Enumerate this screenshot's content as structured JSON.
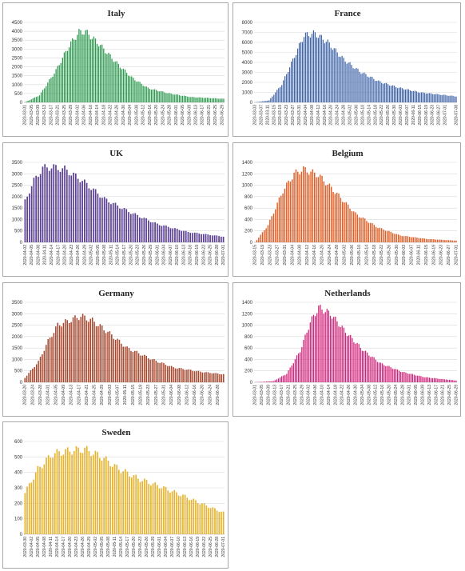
{
  "chart_data": [
    {
      "type": "bar",
      "title": "Italy",
      "color": "#2e9a4f",
      "ylim": [
        0,
        4500
      ],
      "yticks": [
        0,
        500,
        1000,
        1500,
        2000,
        2500,
        3000,
        3500,
        4000,
        4500
      ],
      "grid": true,
      "start_date": "2020-03-01",
      "end_date": "2020-06-30",
      "xtick_labels": [
        "2020-03-01",
        "2020-03-05",
        "2020-03-09",
        "2020-03-13",
        "2020-03-17",
        "2020-03-21",
        "2020-03-25",
        "2020-03-29",
        "2020-04-02",
        "2020-04-06",
        "2020-04-10",
        "2020-04-14",
        "2020-04-18",
        "2020-04-22",
        "2020-04-26",
        "2020-04-30",
        "2020-05-04",
        "2020-05-08",
        "2020-05-12",
        "2020-05-16",
        "2020-05-20",
        "2020-05-24",
        "2020-05-28",
        "2020-06-01",
        "2020-06-05",
        "2020-06-09",
        "2020-06-13",
        "2020-06-17",
        "2020-06-21",
        "2020-06-25",
        "2020-06-29"
      ],
      "shape": {
        "x": [
          "2020-03-01",
          "2020-03-10",
          "2020-03-20",
          "2020-03-28",
          "2020-04-03",
          "2020-04-07",
          "2020-04-15",
          "2020-04-25",
          "2020-05-05",
          "2020-05-15",
          "2020-05-28",
          "2020-06-10",
          "2020-06-30"
        ],
        "y": [
          0,
          400,
          1800,
          3200,
          3950,
          3980,
          3300,
          2300,
          1400,
          800,
          500,
          300,
          200
        ]
      }
    },
    {
      "type": "bar",
      "title": "France",
      "color": "#3f64aa",
      "ylim": [
        0,
        8000
      ],
      "yticks": [
        0,
        1000,
        2000,
        3000,
        4000,
        5000,
        6000,
        7000,
        8000
      ],
      "grid": true,
      "start_date": "2020-03-03",
      "end_date": "2020-07-08",
      "xtick_labels": [
        "2020-03-03",
        "2020-03-07",
        "2020-03-11",
        "2020-03-15",
        "2020-03-19",
        "2020-03-23",
        "2020-03-27",
        "2020-03-31",
        "2020-04-04",
        "2020-04-08",
        "2020-04-12",
        "2020-04-16",
        "2020-04-20",
        "2020-04-24",
        "2020-04-28",
        "2020-05-02",
        "2020-05-06",
        "2020-05-10",
        "2020-05-14",
        "2020-05-18",
        "2020-05-22",
        "2020-05-26",
        "2020-05-30",
        "2020-06-03",
        "2020-06-07",
        "2020-06-11",
        "2020-06-15",
        "2020-06-19",
        "2020-06-23",
        "2020-06-27",
        "2020-07-01",
        "2020-07-08"
      ],
      "shape": {
        "x": [
          "2020-03-03",
          "2020-03-12",
          "2020-03-20",
          "2020-03-28",
          "2020-04-03",
          "2020-04-10",
          "2020-04-18",
          "2020-04-28",
          "2020-05-08",
          "2020-05-20",
          "2020-06-01",
          "2020-06-15",
          "2020-07-08"
        ],
        "y": [
          0,
          200,
          1800,
          4600,
          6700,
          6900,
          6000,
          4300,
          3100,
          2100,
          1500,
          1000,
          600
        ]
      }
    },
    {
      "type": "bar",
      "title": "UK",
      "color": "#5b3f93",
      "ylim": [
        0,
        3500
      ],
      "yticks": [
        0,
        500,
        1000,
        1500,
        2000,
        2500,
        3000,
        3500
      ],
      "grid": true,
      "start_date": "2020-04-02",
      "end_date": "2020-07-01",
      "xtick_labels": [
        "2020-04-02",
        "2020-04-05",
        "2020-04-08",
        "2020-04-11",
        "2020-04-14",
        "2020-04-17",
        "2020-04-20",
        "2020-04-23",
        "2020-04-26",
        "2020-04-29",
        "2020-05-02",
        "2020-05-05",
        "2020-05-08",
        "2020-05-11",
        "2020-05-14",
        "2020-05-17",
        "2020-05-20",
        "2020-05-23",
        "2020-05-26",
        "2020-05-29",
        "2020-06-01",
        "2020-06-04",
        "2020-06-07",
        "2020-06-10",
        "2020-06-13",
        "2020-06-16",
        "2020-06-19",
        "2020-06-22",
        "2020-06-25",
        "2020-06-28",
        "2020-07-01"
      ],
      "shape": {
        "x": [
          "2020-04-02",
          "2020-04-06",
          "2020-04-10",
          "2020-04-14",
          "2020-04-20",
          "2020-04-28",
          "2020-05-08",
          "2020-05-20",
          "2020-06-01",
          "2020-06-15",
          "2020-07-01"
        ],
        "y": [
          1800,
          2700,
          3250,
          3300,
          3200,
          2700,
          1900,
          1300,
          800,
          450,
          250
        ]
      }
    },
    {
      "type": "bar",
      "title": "Belgium",
      "color": "#e05d25",
      "ylim": [
        0,
        1400
      ],
      "yticks": [
        0,
        200,
        400,
        600,
        800,
        1000,
        1200,
        1400
      ],
      "grid": true,
      "start_date": "2020-03-15",
      "end_date": "2020-07-01",
      "xtick_labels": [
        "2020-03-15",
        "2020-03-19",
        "2020-03-23",
        "2020-03-27",
        "2020-03-31",
        "2020-04-04",
        "2020-04-08",
        "2020-04-12",
        "2020-04-16",
        "2020-04-20",
        "2020-04-24",
        "2020-04-28",
        "2020-05-02",
        "2020-05-06",
        "2020-05-10",
        "2020-05-14",
        "2020-05-18",
        "2020-05-22",
        "2020-05-26",
        "2020-05-30",
        "2020-06-03",
        "2020-06-07",
        "2020-06-11",
        "2020-06-15",
        "2020-06-19",
        "2020-06-23",
        "2020-06-27",
        "2020-07-01"
      ],
      "shape": {
        "x": [
          "2020-03-15",
          "2020-03-22",
          "2020-03-30",
          "2020-04-05",
          "2020-04-10",
          "2020-04-18",
          "2020-04-28",
          "2020-05-08",
          "2020-05-20",
          "2020-06-01",
          "2020-06-15",
          "2020-07-01"
        ],
        "y": [
          0,
          300,
          900,
          1200,
          1280,
          1180,
          850,
          500,
          260,
          120,
          60,
          30
        ]
      }
    },
    {
      "type": "bar",
      "title": "Germany",
      "color": "#a6452b",
      "ylim": [
        0,
        3500
      ],
      "yticks": [
        0,
        500,
        1000,
        1500,
        2000,
        2500,
        3000,
        3500
      ],
      "grid": true,
      "start_date": "2020-03-20",
      "end_date": "2020-07-01",
      "xtick_labels": [
        "2020-03-20",
        "2020-03-24",
        "2020-03-28",
        "2020-04-01",
        "2020-04-05",
        "2020-04-09",
        "2020-04-13",
        "2020-04-17",
        "2020-04-21",
        "2020-04-25",
        "2020-04-29",
        "2020-05-03",
        "2020-05-07",
        "2020-05-11",
        "2020-05-15",
        "2020-05-19",
        "2020-05-23",
        "2020-05-27",
        "2020-05-31",
        "2020-06-04",
        "2020-06-08",
        "2020-06-12",
        "2020-06-16",
        "2020-06-20",
        "2020-06-24",
        "2020-06-28"
      ],
      "shape": {
        "x": [
          "2020-03-20",
          "2020-03-27",
          "2020-04-01",
          "2020-04-06",
          "2020-04-12",
          "2020-04-18",
          "2020-04-24",
          "2020-05-02",
          "2020-05-12",
          "2020-05-25",
          "2020-06-05",
          "2020-06-20",
          "2020-07-01"
        ],
        "y": [
          200,
          900,
          1800,
          2500,
          2700,
          2900,
          2700,
          2200,
          1500,
          1000,
          650,
          450,
          350
        ]
      }
    },
    {
      "type": "bar",
      "title": "Netherlands",
      "color": "#d2237b",
      "ylim": [
        0,
        1400
      ],
      "yticks": [
        0,
        200,
        400,
        600,
        800,
        1000,
        1200,
        1400
      ],
      "grid": true,
      "start_date": "2020-03-01",
      "end_date": "2020-06-29",
      "xtick_labels": [
        "2020-03-01",
        "2020-03-05",
        "2020-03-09",
        "2020-03-13",
        "2020-03-17",
        "2020-03-21",
        "2020-03-25",
        "2020-03-29",
        "2020-04-02",
        "2020-04-06",
        "2020-04-10",
        "2020-04-14",
        "2020-04-18",
        "2020-04-22",
        "2020-04-26",
        "2020-04-30",
        "2020-05-04",
        "2020-05-08",
        "2020-05-12",
        "2020-05-16",
        "2020-05-20",
        "2020-05-24",
        "2020-05-28",
        "2020-06-01",
        "2020-06-05",
        "2020-06-09",
        "2020-06-13",
        "2020-06-17",
        "2020-06-21",
        "2020-06-25",
        "2020-06-29"
      ],
      "shape": {
        "x": [
          "2020-03-01",
          "2020-03-12",
          "2020-03-20",
          "2020-03-28",
          "2020-04-03",
          "2020-04-08",
          "2020-04-15",
          "2020-04-25",
          "2020-05-05",
          "2020-05-15",
          "2020-05-28",
          "2020-06-10",
          "2020-06-29"
        ],
        "y": [
          0,
          20,
          150,
          550,
          1050,
          1310,
          1200,
          850,
          550,
          330,
          180,
          90,
          30
        ]
      }
    },
    {
      "type": "bar",
      "title": "Sweden",
      "color": "#e6b32e",
      "ylim": [
        0,
        600
      ],
      "yticks": [
        0,
        100,
        200,
        300,
        400,
        500,
        600
      ],
      "grid": true,
      "start_date": "2020-03-30",
      "end_date": "2020-07-01",
      "xtick_labels": [
        "2020-03-30",
        "2020-04-02",
        "2020-04-05",
        "2020-04-08",
        "2020-04-11",
        "2020-04-14",
        "2020-04-17",
        "2020-04-20",
        "2020-04-23",
        "2020-04-26",
        "2020-04-29",
        "2020-05-02",
        "2020-05-05",
        "2020-05-08",
        "2020-05-11",
        "2020-05-14",
        "2020-05-17",
        "2020-05-20",
        "2020-05-23",
        "2020-05-26",
        "2020-05-29",
        "2020-06-01",
        "2020-06-04",
        "2020-06-07",
        "2020-06-10",
        "2020-06-13",
        "2020-06-16",
        "2020-06-19",
        "2020-06-22",
        "2020-06-25",
        "2020-06-28",
        "2020-07-01"
      ],
      "shape": {
        "x": [
          "2020-03-30",
          "2020-04-05",
          "2020-04-12",
          "2020-04-20",
          "2020-04-27",
          "2020-05-05",
          "2020-05-12",
          "2020-05-22",
          "2020-06-01",
          "2020-06-12",
          "2020-06-22",
          "2020-07-01"
        ],
        "y": [
          270,
          420,
          520,
          540,
          550,
          500,
          430,
          360,
          310,
          250,
          190,
          140
        ]
      }
    }
  ]
}
